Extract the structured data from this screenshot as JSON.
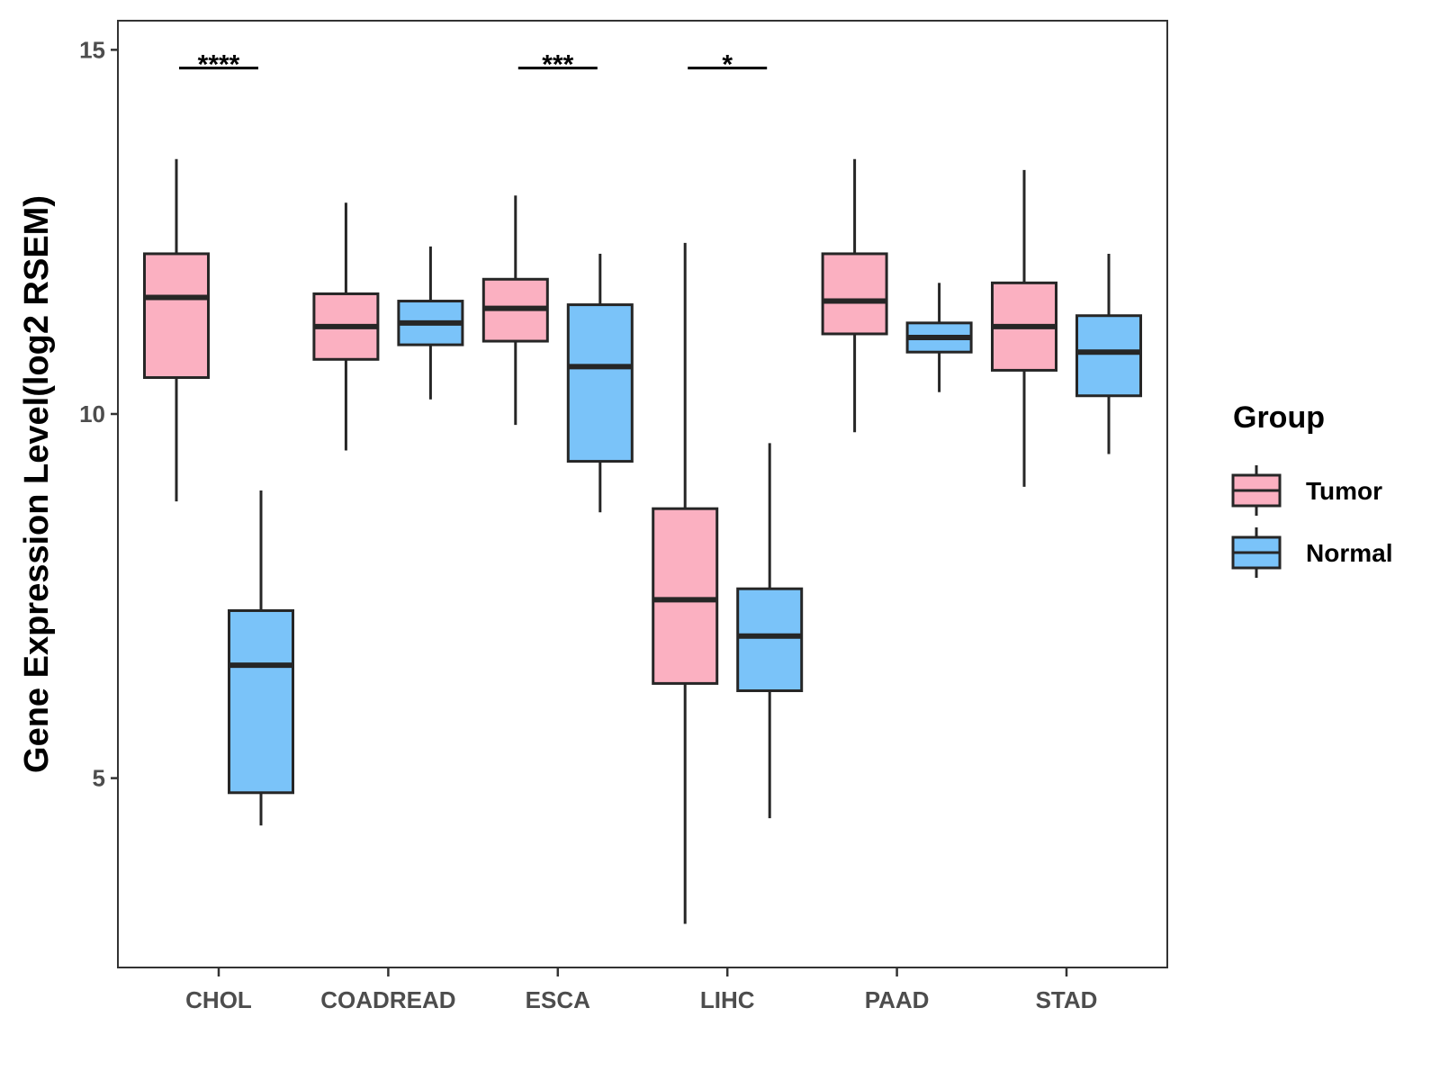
{
  "chart_data": {
    "type": "boxplot",
    "title": "",
    "xlabel": "",
    "ylabel": "Gene Expression Level(log2 RSEM)",
    "ylim": [
      2.4,
      15.4
    ],
    "yticks": [
      5,
      10,
      15
    ],
    "categories": [
      "CHOL",
      "COADREAD",
      "ESCA",
      "LIHC",
      "PAAD",
      "STAD"
    ],
    "legend": {
      "title": "Group",
      "position": "right"
    },
    "series": [
      {
        "name": "Tumor",
        "color": "#FBB0C1",
        "boxes": [
          {
            "category": "CHOL",
            "min": 8.8,
            "q1": 10.5,
            "median": 11.6,
            "q3": 12.2,
            "max": 13.5
          },
          {
            "category": "COADREAD",
            "min": 9.5,
            "q1": 10.75,
            "median": 11.2,
            "q3": 11.65,
            "max": 12.9
          },
          {
            "category": "ESCA",
            "min": 9.85,
            "q1": 11.0,
            "median": 11.45,
            "q3": 11.85,
            "max": 13.0
          },
          {
            "category": "LIHC",
            "min": 3.0,
            "q1": 6.3,
            "median": 7.45,
            "q3": 8.7,
            "max": 12.35
          },
          {
            "category": "PAAD",
            "min": 9.75,
            "q1": 11.1,
            "median": 11.55,
            "q3": 12.2,
            "max": 13.5
          },
          {
            "category": "STAD",
            "min": 9.0,
            "q1": 10.6,
            "median": 11.2,
            "q3": 11.8,
            "max": 13.35
          }
        ]
      },
      {
        "name": "Normal",
        "color": "#7AC3F9",
        "boxes": [
          {
            "category": "CHOL",
            "min": 4.35,
            "q1": 4.8,
            "median": 6.55,
            "q3": 7.3,
            "max": 8.95
          },
          {
            "category": "COADREAD",
            "min": 10.2,
            "q1": 10.95,
            "median": 11.25,
            "q3": 11.55,
            "max": 12.3
          },
          {
            "category": "ESCA",
            "min": 8.65,
            "q1": 9.35,
            "median": 10.65,
            "q3": 11.5,
            "max": 12.2
          },
          {
            "category": "LIHC",
            "min": 4.45,
            "q1": 6.2,
            "median": 6.95,
            "q3": 7.6,
            "max": 9.6
          },
          {
            "category": "PAAD",
            "min": 10.3,
            "q1": 10.85,
            "median": 11.05,
            "q3": 11.25,
            "max": 11.8
          },
          {
            "category": "STAD",
            "min": 9.45,
            "q1": 10.25,
            "median": 10.85,
            "q3": 11.35,
            "max": 12.2
          }
        ]
      }
    ],
    "significance": [
      {
        "category": "CHOL",
        "label": "****",
        "y": 14.75
      },
      {
        "category": "ESCA",
        "label": "***",
        "y": 14.75
      },
      {
        "category": "LIHC",
        "label": "*",
        "y": 14.75
      }
    ]
  }
}
